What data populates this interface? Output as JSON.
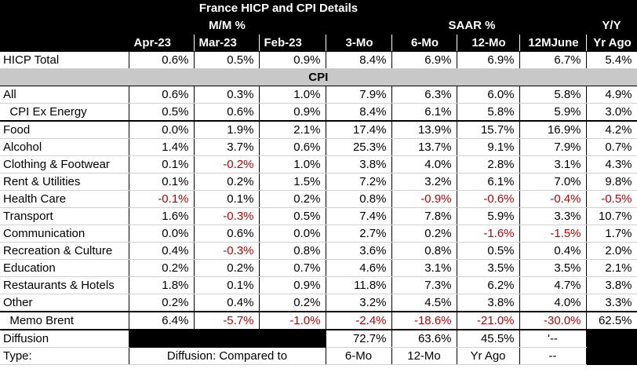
{
  "title": "France HICP and CPI Details",
  "group_labels": {
    "mm": "M/M %",
    "saar": "SAAR %",
    "yy": "Y/Y"
  },
  "columns": [
    "Apr-23",
    "Mar-23",
    "Feb-23",
    "3-Mo",
    "6-Mo",
    "12-Mo",
    "12MJune",
    "Yr Ago"
  ],
  "hicp": {
    "label": "HICP Total",
    "values": [
      "0.6%",
      "0.5%",
      "0.9%",
      "8.4%",
      "6.9%",
      "6.9%",
      "6.7%",
      "5.4%"
    ]
  },
  "cpi_band": "CPI",
  "cpi_rows": [
    {
      "label": "All",
      "values": [
        "0.6%",
        "0.3%",
        "1.0%",
        "7.9%",
        "6.3%",
        "6.0%",
        "5.8%",
        "4.9%"
      ]
    },
    {
      "label": "  CPI Ex Energy",
      "values": [
        "0.5%",
        "0.6%",
        "0.9%",
        "8.4%",
        "6.1%",
        "5.8%",
        "5.9%",
        "3.0%"
      ]
    }
  ],
  "component_rows": [
    {
      "label": "Food",
      "values": [
        "0.0%",
        "1.9%",
        "2.1%",
        "17.4%",
        "13.9%",
        "15.7%",
        "16.9%",
        "4.2%"
      ]
    },
    {
      "label": "Alcohol",
      "values": [
        "1.4%",
        "3.7%",
        "0.6%",
        "25.3%",
        "13.7%",
        "9.1%",
        "7.9%",
        "0.7%"
      ]
    },
    {
      "label": "Clothing & Footwear",
      "values": [
        "0.1%",
        "-0.2%",
        "1.0%",
        "3.8%",
        "4.0%",
        "2.8%",
        "3.1%",
        "4.3%"
      ]
    },
    {
      "label": "Rent & Utilities",
      "values": [
        "0.1%",
        "0.2%",
        "1.5%",
        "7.2%",
        "3.2%",
        "6.1%",
        "7.0%",
        "9.8%"
      ]
    },
    {
      "label": "Health Care",
      "values": [
        "-0.1%",
        "0.1%",
        "0.2%",
        "0.8%",
        "-0.9%",
        "-0.6%",
        "-0.4%",
        "-0.5%"
      ]
    },
    {
      "label": "Transport",
      "values": [
        "1.6%",
        "-0.3%",
        "0.5%",
        "7.4%",
        "7.8%",
        "5.9%",
        "3.3%",
        "10.7%"
      ]
    },
    {
      "label": "Communication",
      "values": [
        "0.0%",
        "0.6%",
        "0.0%",
        "2.7%",
        "0.2%",
        "-1.6%",
        "-1.5%",
        "1.7%"
      ]
    },
    {
      "label": "Recreation & Culture",
      "values": [
        "0.4%",
        "-0.3%",
        "0.8%",
        "3.6%",
        "0.8%",
        "0.5%",
        "0.4%",
        "2.0%"
      ]
    },
    {
      "label": "Education",
      "values": [
        "0.2%",
        "0.2%",
        "0.7%",
        "4.6%",
        "3.1%",
        "3.5%",
        "3.5%",
        "2.1%"
      ]
    },
    {
      "label": "Restaurants & Hotels",
      "values": [
        "1.8%",
        "0.1%",
        "0.9%",
        "11.8%",
        "7.3%",
        "6.2%",
        "4.7%",
        "3.8%"
      ]
    },
    {
      "label": "Other",
      "values": [
        "0.2%",
        "0.4%",
        "0.2%",
        "3.2%",
        "4.5%",
        "3.8%",
        "4.0%",
        "3.3%"
      ]
    }
  ],
  "memo": {
    "label": "  Memo Brent",
    "values": [
      "6.4%",
      "-5.7%",
      "-1.0%",
      "-2.4%",
      "-18.6%",
      "-21.0%",
      "-30.0%",
      "62.5%"
    ]
  },
  "diffusion": {
    "label": "Diffusion",
    "values": [
      "72.7%",
      "63.6%",
      "45.5%",
      "'--"
    ]
  },
  "type_row": {
    "label": "Type:",
    "note": "Diffusion: Compared to",
    "values": [
      "6-Mo",
      "12-Mo",
      "Yr Ago",
      "--"
    ]
  },
  "colors": {
    "negative": "#c00000",
    "header_bg": "#000000",
    "band_bg": "#c8c8c8"
  }
}
